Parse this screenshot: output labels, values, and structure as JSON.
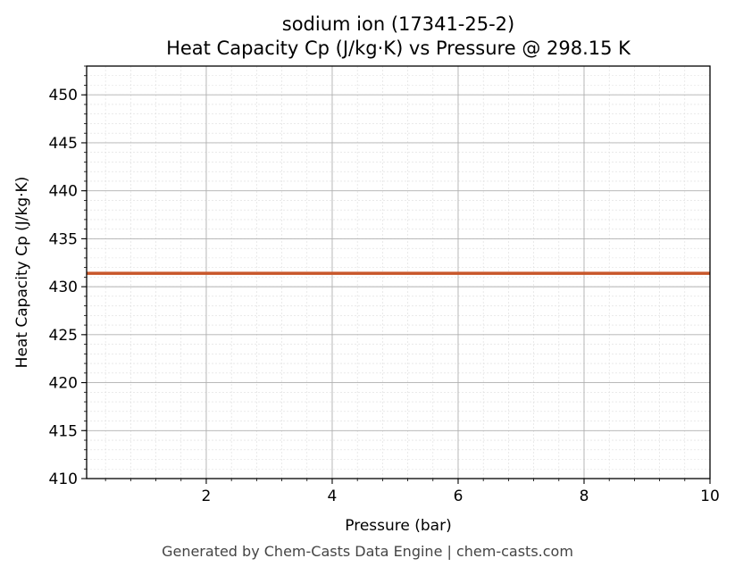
{
  "chart_data": {
    "type": "line",
    "title_lines": [
      "sodium ion (17341-25-2)",
      "Heat Capacity Cp (J/kg·K) vs Pressure @ 298.15 K"
    ],
    "xlabel": "Pressure (bar)",
    "ylabel": "Heat Capacity Cp (J/kg·K)",
    "xlim": [
      0.1,
      10
    ],
    "ylim": [
      410,
      453
    ],
    "xticks": [
      2,
      4,
      6,
      8,
      10
    ],
    "yticks": [
      410,
      415,
      420,
      425,
      430,
      435,
      440,
      445,
      450
    ],
    "grid": true,
    "minor_grid": true,
    "series": [
      {
        "color": "#c8562a",
        "x": [
          0.1,
          10
        ],
        "y": [
          431.4,
          431.4
        ]
      }
    ]
  },
  "footer": "Generated by Chem-Casts Data Engine | chem-casts.com"
}
